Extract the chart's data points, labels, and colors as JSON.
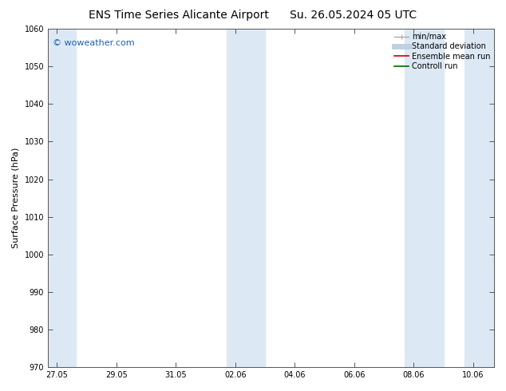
{
  "title_left": "ENS Time Series Alicante Airport",
  "title_right": "Su. 26.05.2024 05 UTC",
  "ylabel": "Surface Pressure (hPa)",
  "ylim": [
    970,
    1060
  ],
  "yticks": [
    970,
    980,
    990,
    1000,
    1010,
    1020,
    1030,
    1040,
    1050,
    1060
  ],
  "xtick_labels": [
    "27.05",
    "29.05",
    "31.05",
    "02.06",
    "04.06",
    "06.06",
    "08.06",
    "10.06"
  ],
  "xtick_positions": [
    0,
    2,
    4,
    6,
    8,
    10,
    12,
    14
  ],
  "xlim": [
    -0.3,
    14.7
  ],
  "background_color": "#ffffff",
  "shaded_color": "#dce9f5",
  "watermark": "© woweather.com",
  "watermark_color": "#1a5fb4",
  "legend_items": [
    {
      "label": "min/max",
      "color": "#aaaaaa",
      "lw": 1.0,
      "style": "solid"
    },
    {
      "label": "Standard deviation",
      "color": "#c0d0e0",
      "lw": 5,
      "style": "solid"
    },
    {
      "label": "Ensemble mean run",
      "color": "#cc0000",
      "lw": 1.2,
      "style": "solid"
    },
    {
      "label": "Controll run",
      "color": "#006600",
      "lw": 1.2,
      "style": "solid"
    }
  ],
  "shaded_bands": [
    {
      "x_start": -0.3,
      "x_end": 0.65
    },
    {
      "x_start": 5.7,
      "x_end": 7.0
    },
    {
      "x_start": 11.7,
      "x_end": 13.0
    },
    {
      "x_start": 13.7,
      "x_end": 14.7
    }
  ],
  "title_fontsize": 10,
  "axis_label_fontsize": 8,
  "tick_fontsize": 7,
  "legend_fontsize": 7,
  "watermark_fontsize": 8,
  "figsize": [
    6.34,
    4.9
  ],
  "dpi": 100
}
